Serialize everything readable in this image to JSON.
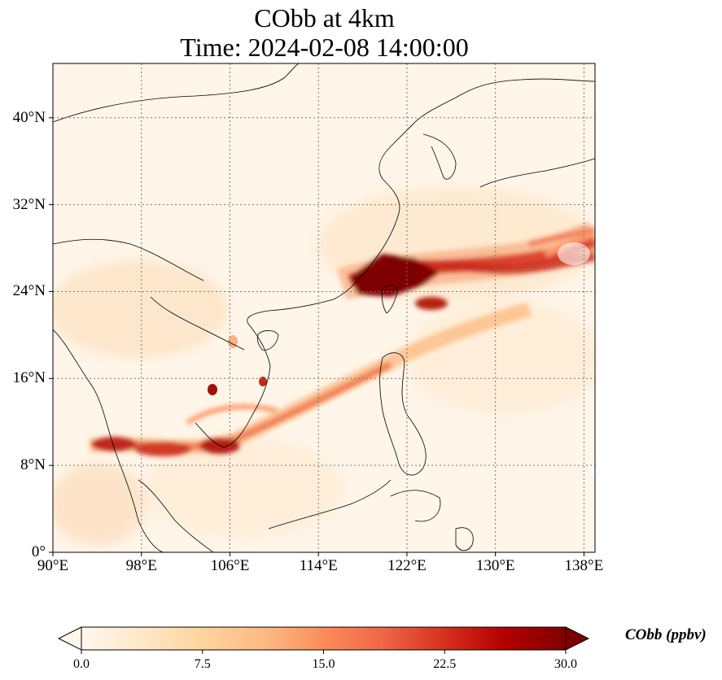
{
  "title": {
    "line1": "CObb at 4km",
    "line2": "Time: 2024-02-08 14:00:00"
  },
  "map": {
    "projection": "PlateCarree",
    "lon_range": [
      90,
      139
    ],
    "lat_range": [
      0,
      45
    ],
    "gridlines": "dotted gray",
    "x_ticks": [
      "90°E",
      "98°E",
      "106°E",
      "114°E",
      "122°E",
      "130°E",
      "138°E"
    ],
    "y_ticks": [
      "40°N",
      "32°N",
      "24°N",
      "16°N",
      "8°N",
      "0°"
    ],
    "x_tick_values": [
      90,
      98,
      106,
      114,
      122,
      130,
      138
    ],
    "y_tick_values": [
      40,
      32,
      24,
      16,
      8,
      0
    ],
    "plume_color_high": "#7f0000",
    "background_color": "#fff5e8"
  },
  "colorbar": {
    "label": "CObb (ppbv)",
    "ticks": [
      "0.0",
      "7.5",
      "15.0",
      "22.5",
      "30.0"
    ],
    "min": 0,
    "max": 30,
    "colormap": "OrRd",
    "extend": "both",
    "colors": [
      "#fff7ec",
      "#fee8c8",
      "#fdd49e",
      "#fdbb84",
      "#fc8d59",
      "#ef6548",
      "#d7301f",
      "#b30000",
      "#7f0000"
    ]
  }
}
